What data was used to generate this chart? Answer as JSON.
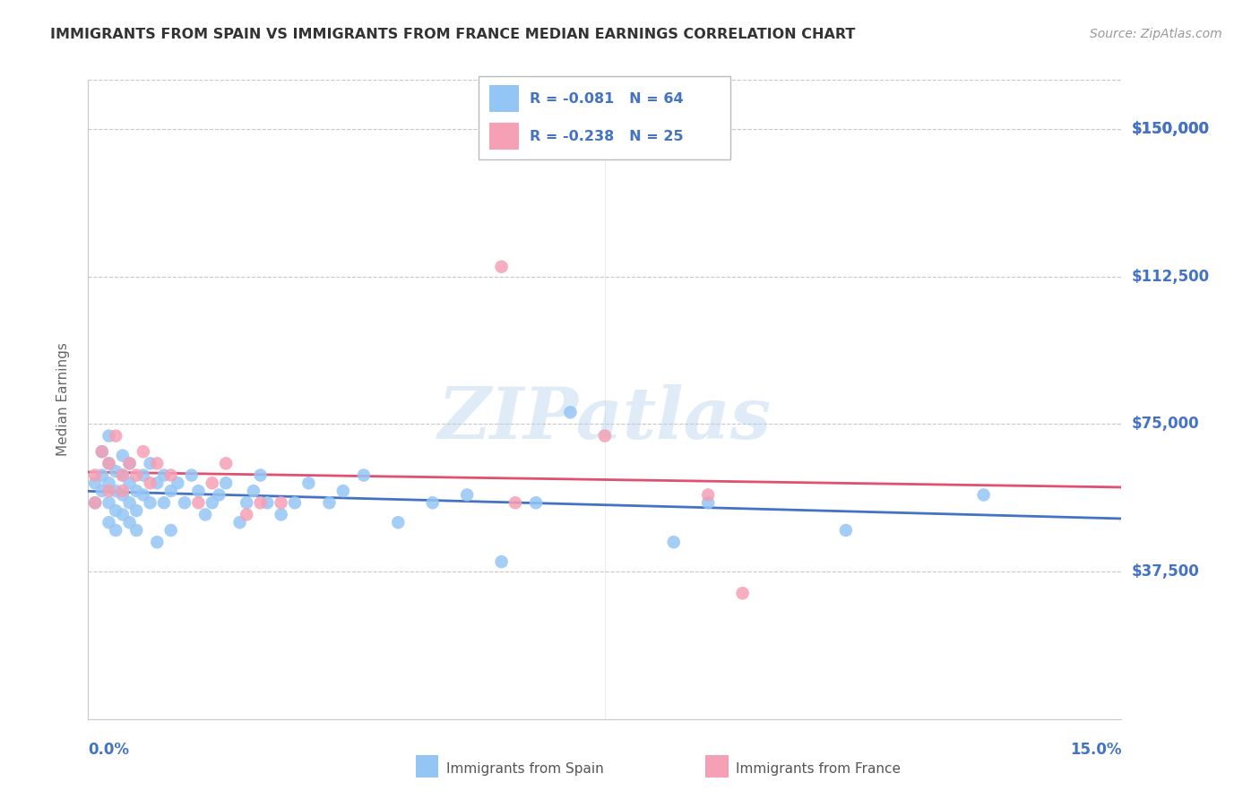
{
  "title": "IMMIGRANTS FROM SPAIN VS IMMIGRANTS FROM FRANCE MEDIAN EARNINGS CORRELATION CHART",
  "source": "Source: ZipAtlas.com",
  "ylabel": "Median Earnings",
  "watermark": "ZIPatlas",
  "xlim": [
    0.0,
    0.15
  ],
  "ylim": [
    0,
    162500
  ],
  "yticks": [
    37500,
    75000,
    112500,
    150000
  ],
  "ytick_labels": [
    "$37,500",
    "$75,000",
    "$112,500",
    "$150,000"
  ],
  "spain_color": "#94C6F5",
  "france_color": "#F5A0B5",
  "spain_line_color": "#4472C4",
  "france_line_color": "#E05070",
  "legend_text_color": "#4472C4",
  "axis_label_color": "#4472C4",
  "title_color": "#333333",
  "source_color": "#999999",
  "grid_color": "#C8C8C8",
  "R_spain": -0.081,
  "N_spain": 64,
  "R_france": -0.238,
  "N_france": 25,
  "spain_x": [
    0.001,
    0.001,
    0.002,
    0.002,
    0.002,
    0.003,
    0.003,
    0.003,
    0.003,
    0.003,
    0.004,
    0.004,
    0.004,
    0.004,
    0.005,
    0.005,
    0.005,
    0.005,
    0.006,
    0.006,
    0.006,
    0.006,
    0.007,
    0.007,
    0.007,
    0.008,
    0.008,
    0.009,
    0.009,
    0.01,
    0.01,
    0.011,
    0.011,
    0.012,
    0.012,
    0.013,
    0.014,
    0.015,
    0.016,
    0.017,
    0.018,
    0.019,
    0.02,
    0.022,
    0.023,
    0.024,
    0.025,
    0.026,
    0.028,
    0.03,
    0.032,
    0.035,
    0.037,
    0.04,
    0.045,
    0.05,
    0.055,
    0.06,
    0.065,
    0.07,
    0.085,
    0.09,
    0.11,
    0.13
  ],
  "spain_y": [
    60000,
    55000,
    68000,
    62000,
    58000,
    72000,
    65000,
    60000,
    55000,
    50000,
    63000,
    58000,
    53000,
    48000,
    67000,
    62000,
    57000,
    52000,
    65000,
    60000,
    55000,
    50000,
    58000,
    53000,
    48000,
    62000,
    57000,
    65000,
    55000,
    60000,
    45000,
    62000,
    55000,
    58000,
    48000,
    60000,
    55000,
    62000,
    58000,
    52000,
    55000,
    57000,
    60000,
    50000,
    55000,
    58000,
    62000,
    55000,
    52000,
    55000,
    60000,
    55000,
    58000,
    62000,
    50000,
    55000,
    57000,
    40000,
    55000,
    78000,
    45000,
    55000,
    48000,
    57000
  ],
  "france_x": [
    0.001,
    0.001,
    0.002,
    0.003,
    0.003,
    0.004,
    0.005,
    0.005,
    0.006,
    0.007,
    0.008,
    0.009,
    0.01,
    0.012,
    0.016,
    0.018,
    0.02,
    0.023,
    0.025,
    0.028,
    0.06,
    0.062,
    0.075,
    0.09,
    0.095
  ],
  "france_y": [
    62000,
    55000,
    68000,
    65000,
    58000,
    72000,
    62000,
    58000,
    65000,
    62000,
    68000,
    60000,
    65000,
    62000,
    55000,
    60000,
    65000,
    52000,
    55000,
    55000,
    115000,
    55000,
    72000,
    57000,
    32000
  ]
}
